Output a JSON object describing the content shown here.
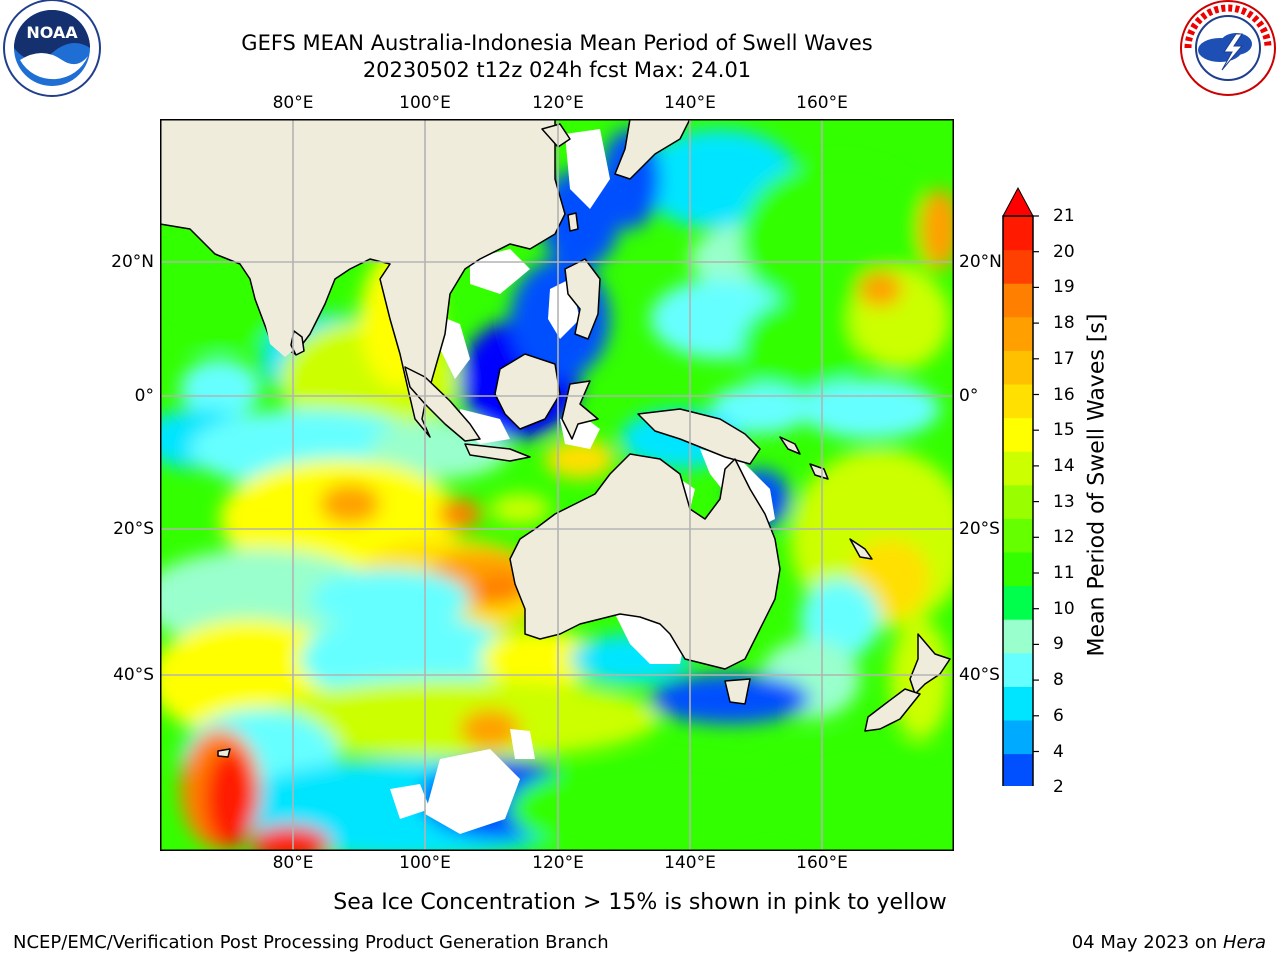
{
  "title_line1": "GEFS MEAN Australia-Indonesia Mean Period of Swell Waves",
  "title_line2": "20230502 t12z 024h fcst   Max: 24.01",
  "lon_ticks": [
    "80°E",
    "100°E",
    "120°E",
    "140°E",
    "160°E"
  ],
  "lat_ticks": [
    "20°N",
    "0°",
    "20°S",
    "40°S"
  ],
  "colorbar": {
    "label": "Mean Period of Swell Waves [s]",
    "levels": [
      "2",
      "4",
      "6",
      "8",
      "9",
      "10",
      "11",
      "12",
      "13",
      "14",
      "15",
      "16",
      "17",
      "18",
      "19",
      "20",
      "21"
    ],
    "colors": [
      "#0050ff",
      "#00aaff",
      "#00e5ff",
      "#66ffff",
      "#99ffcc",
      "#00ff4c",
      "#33ff00",
      "#66ff00",
      "#99ff00",
      "#ccff00",
      "#ffff00",
      "#ffe000",
      "#ffc000",
      "#ffa000",
      "#ff7f00",
      "#ff4000",
      "#ff1a00"
    ],
    "under_color": "#0000ff",
    "over_color": "#ff0000"
  },
  "note": "Sea Ice Concentration > 15% is shown in pink to yellow",
  "footer_left": "NCEP/EMC/Verification Post Processing Product Generation Branch",
  "footer_date": "04 May 2023 on ",
  "footer_host": "Hera",
  "logos": {
    "left": "noaa-logo",
    "right": "nws-logo"
  },
  "land_color": "#efecdc"
}
